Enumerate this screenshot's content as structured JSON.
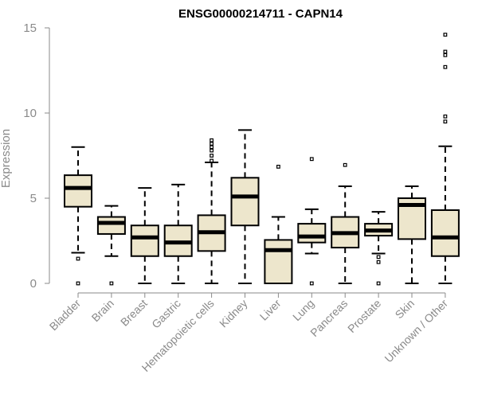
{
  "chart_data": {
    "type": "box",
    "title": "ENSG00000214711 - CAPN14",
    "ylabel": "Expression",
    "xlabel": "",
    "ylim": [
      0,
      15
    ],
    "yticks": [
      0,
      5,
      10,
      15
    ],
    "box_fill": "#ede6cc",
    "categories": [
      "Bladder",
      "Brain",
      "Breast",
      "Gastric",
      "Hematopoietic cells",
      "Kidney",
      "Liver",
      "Lung",
      "Pancreas",
      "Prostate",
      "Skin",
      "Unknown / Other"
    ],
    "boxes": [
      {
        "category": "Bladder",
        "whisker_low": 1.8,
        "q1": 4.5,
        "median": 5.6,
        "q3": 6.35,
        "whisker_high": 8.0,
        "outliers": [
          1.45,
          0.0
        ]
      },
      {
        "category": "Brain",
        "whisker_low": 1.6,
        "q1": 2.9,
        "median": 3.55,
        "q3": 3.9,
        "whisker_high": 4.55,
        "outliers": [
          0.0
        ]
      },
      {
        "category": "Breast",
        "whisker_low": 0.0,
        "q1": 1.6,
        "median": 2.7,
        "q3": 3.4,
        "whisker_high": 5.6,
        "outliers": []
      },
      {
        "category": "Gastric",
        "whisker_low": 0.0,
        "q1": 1.6,
        "median": 2.4,
        "q3": 3.4,
        "whisker_high": 5.8,
        "outliers": []
      },
      {
        "category": "Hematopoietic cells",
        "whisker_low": 0.0,
        "q1": 1.9,
        "median": 3.0,
        "q3": 4.0,
        "whisker_high": 7.1,
        "outliers": [
          7.2,
          7.5,
          7.8,
          8.0,
          8.2,
          8.4
        ]
      },
      {
        "category": "Kidney",
        "whisker_low": 0.0,
        "q1": 3.4,
        "median": 5.1,
        "q3": 6.2,
        "whisker_high": 9.0,
        "outliers": []
      },
      {
        "category": "Liver",
        "whisker_low": 0.0,
        "q1": 0.0,
        "median": 1.95,
        "q3": 2.55,
        "whisker_high": 3.9,
        "outliers": [
          6.85
        ]
      },
      {
        "category": "Lung",
        "whisker_low": 1.75,
        "q1": 2.4,
        "median": 2.75,
        "q3": 3.5,
        "whisker_high": 4.35,
        "outliers": [
          7.3,
          0.0
        ]
      },
      {
        "category": "Pancreas",
        "whisker_low": 0.0,
        "q1": 2.1,
        "median": 2.95,
        "q3": 3.9,
        "whisker_high": 5.7,
        "outliers": [
          6.95
        ]
      },
      {
        "category": "Prostate",
        "whisker_low": 1.75,
        "q1": 2.8,
        "median": 3.1,
        "q3": 3.5,
        "whisker_high": 4.2,
        "outliers": [
          1.55,
          1.25,
          0.0
        ]
      },
      {
        "category": "Skin",
        "whisker_low": 0.0,
        "q1": 2.6,
        "median": 4.6,
        "q3": 5.0,
        "whisker_high": 5.7,
        "outliers": []
      },
      {
        "category": "Unknown / Other",
        "whisker_low": 0.0,
        "q1": 1.6,
        "median": 2.7,
        "q3": 4.3,
        "whisker_high": 8.05,
        "outliers": [
          9.5,
          9.8,
          12.7,
          13.4,
          13.6,
          14.6
        ]
      }
    ]
  }
}
